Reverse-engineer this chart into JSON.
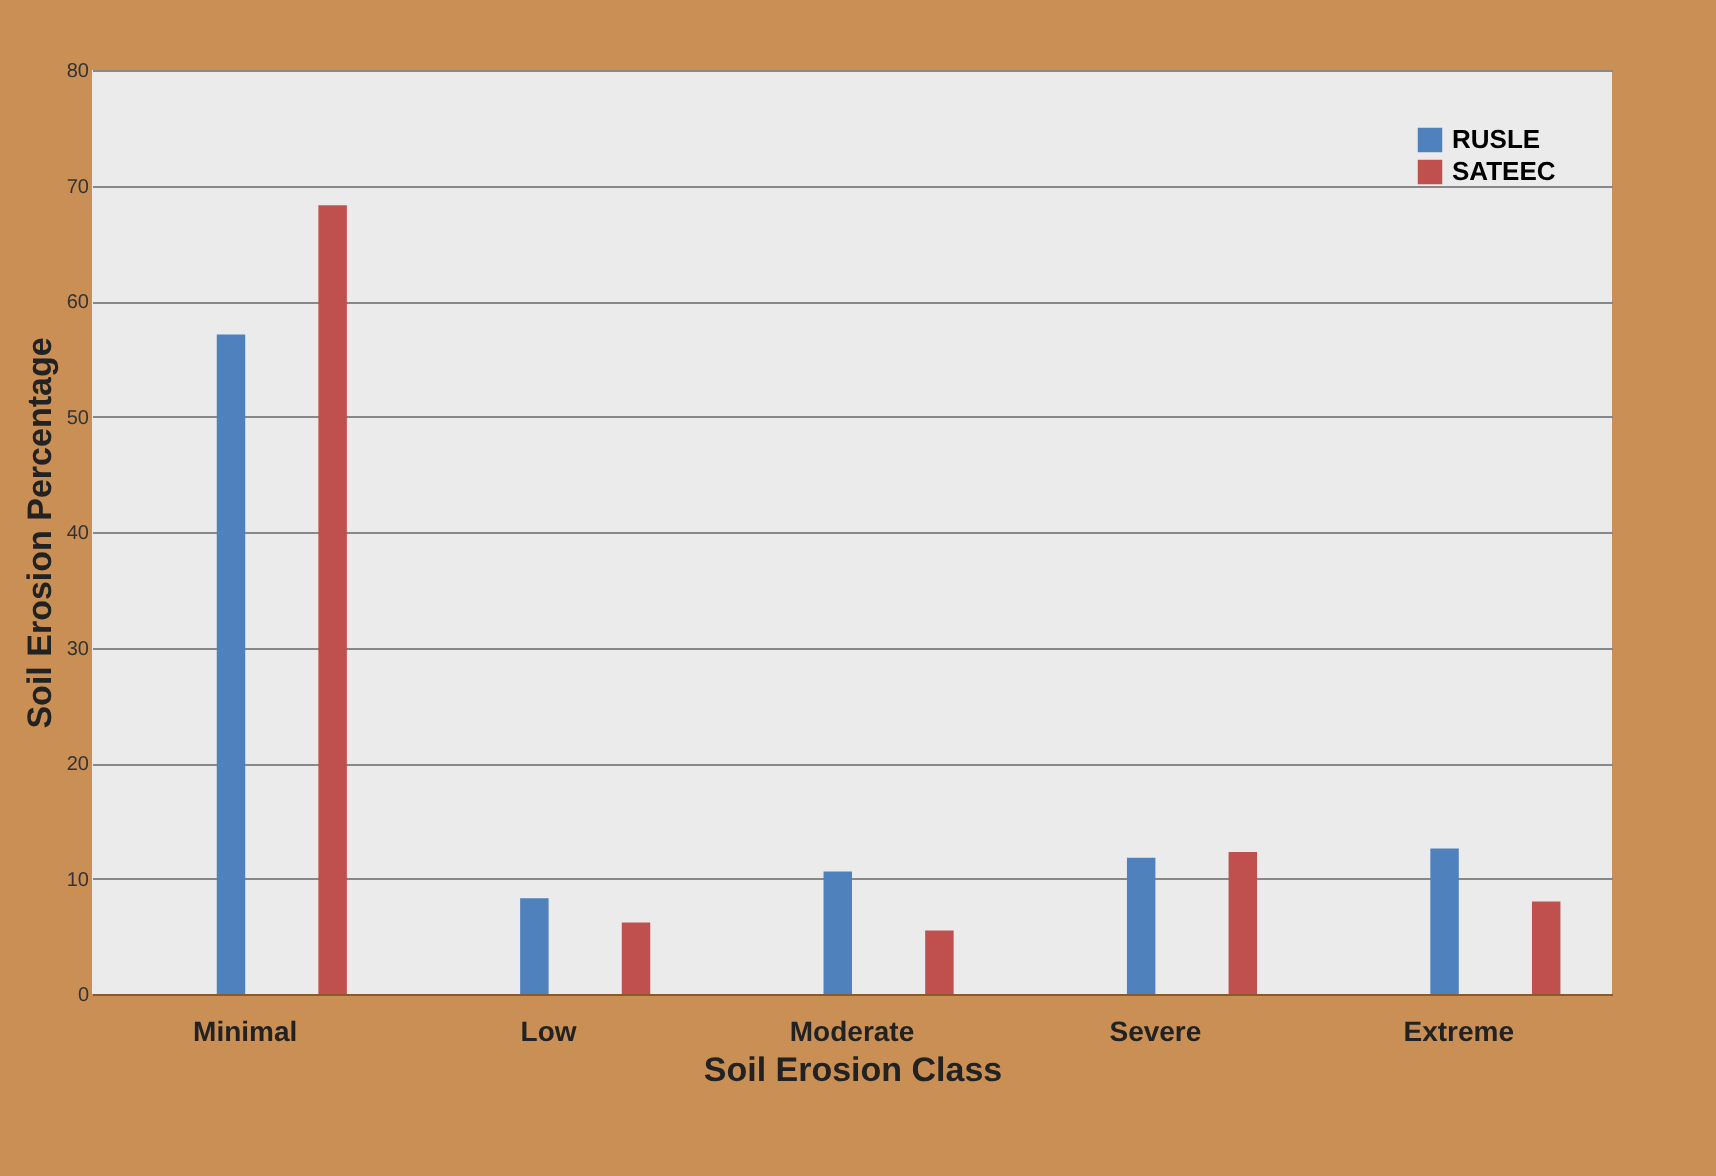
{
  "chart_data": {
    "type": "bar",
    "xlabel": "Soil Erosion Class",
    "ylabel": "Soil Erosion Percentage",
    "categories": [
      "Minimal",
      "Low",
      "Moderate",
      "Severe",
      "Extreme"
    ],
    "series": [
      {
        "name": "RUSLE",
        "color": "#4f81bd",
        "values": [
          57.1,
          8.3,
          10.6,
          11.8,
          12.6
        ]
      },
      {
        "name": "SATEEC",
        "color": "#c0504d",
        "values": [
          68.3,
          6.2,
          5.5,
          12.3,
          8.0
        ]
      }
    ],
    "ylim": [
      0,
      80
    ],
    "yticks": [
      0,
      10,
      20,
      30,
      40,
      50,
      60,
      70,
      80
    ],
    "grid": "y",
    "legend": "top right"
  }
}
